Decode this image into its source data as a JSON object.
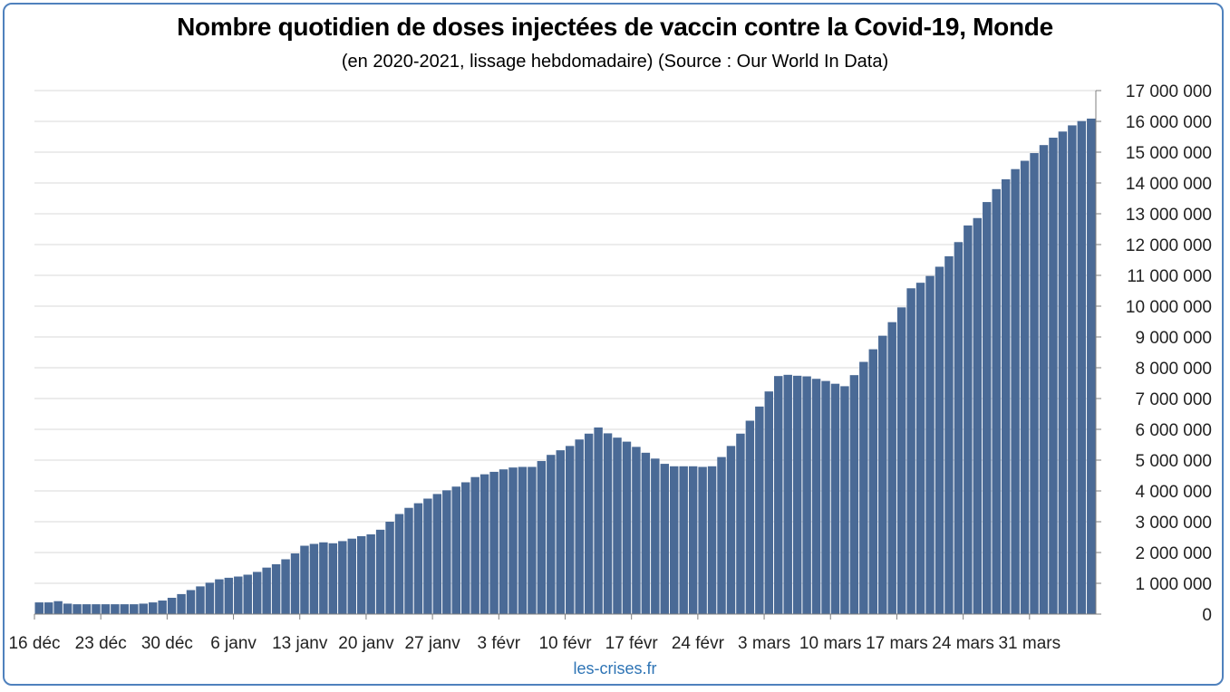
{
  "title": "Nombre quotidien de doses injectées de vaccin contre la Covid-19, Monde",
  "subtitle": "(en 2020-2021, lissage hebdomadaire) (Source : Our World In Data)",
  "footer": "les-crises.fr",
  "colors": {
    "bar": "#4a6a96",
    "frame": "#4f81bd",
    "grid": "#d9d9d9",
    "footer": "#2e74b5"
  },
  "chart_data": {
    "type": "bar",
    "title": "Nombre quotidien de doses injectées de vaccin contre la Covid-19, Monde",
    "subtitle": "(en 2020-2021, lissage hebdomadaire) (Source : Our World In Data)",
    "xlabel": "",
    "ylabel": "",
    "ylim": [
      0,
      17000000
    ],
    "y_axis_side": "right",
    "grid": true,
    "legend": "none",
    "yticks": [
      {
        "value": 0,
        "label": "0"
      },
      {
        "value": 1000000,
        "label": "1 000 000"
      },
      {
        "value": 2000000,
        "label": "2 000 000"
      },
      {
        "value": 3000000,
        "label": "3 000 000"
      },
      {
        "value": 4000000,
        "label": "4 000 000"
      },
      {
        "value": 5000000,
        "label": "5 000 000"
      },
      {
        "value": 6000000,
        "label": "6 000 000"
      },
      {
        "value": 7000000,
        "label": "7 000 000"
      },
      {
        "value": 8000000,
        "label": "8 000 000"
      },
      {
        "value": 9000000,
        "label": "9 000 000"
      },
      {
        "value": 10000000,
        "label": "10 000 000"
      },
      {
        "value": 11000000,
        "label": "11 000 000"
      },
      {
        "value": 12000000,
        "label": "12 000 000"
      },
      {
        "value": 13000000,
        "label": "13 000 000"
      },
      {
        "value": 14000000,
        "label": "14 000 000"
      },
      {
        "value": 15000000,
        "label": "15 000 000"
      },
      {
        "value": 16000000,
        "label": "16 000 000"
      },
      {
        "value": 17000000,
        "label": "17 000 000"
      }
    ],
    "xticks": [
      {
        "index": 0,
        "label": "16 déc"
      },
      {
        "index": 7,
        "label": "23 déc"
      },
      {
        "index": 14,
        "label": "30 déc"
      },
      {
        "index": 21,
        "label": "6 janv"
      },
      {
        "index": 28,
        "label": "13 janv"
      },
      {
        "index": 35,
        "label": "20 janv"
      },
      {
        "index": 42,
        "label": "27 janv"
      },
      {
        "index": 49,
        "label": "3 févr"
      },
      {
        "index": 56,
        "label": "10 févr"
      },
      {
        "index": 63,
        "label": "17 févr"
      },
      {
        "index": 70,
        "label": "24 févr"
      },
      {
        "index": 77,
        "label": "3 mars"
      },
      {
        "index": 84,
        "label": "10 mars"
      },
      {
        "index": 91,
        "label": "17 mars"
      },
      {
        "index": 98,
        "label": "24 mars"
      },
      {
        "index": 105,
        "label": "31 mars"
      }
    ],
    "values": [
      380000,
      380000,
      420000,
      340000,
      320000,
      320000,
      320000,
      320000,
      320000,
      320000,
      320000,
      340000,
      380000,
      440000,
      530000,
      650000,
      780000,
      900000,
      1020000,
      1130000,
      1180000,
      1220000,
      1280000,
      1370000,
      1510000,
      1620000,
      1780000,
      1970000,
      2220000,
      2280000,
      2330000,
      2300000,
      2370000,
      2450000,
      2530000,
      2590000,
      2740000,
      3000000,
      3250000,
      3450000,
      3600000,
      3750000,
      3900000,
      4020000,
      4140000,
      4280000,
      4450000,
      4540000,
      4620000,
      4700000,
      4760000,
      4780000,
      4780000,
      4970000,
      5170000,
      5320000,
      5460000,
      5670000,
      5860000,
      6060000,
      5870000,
      5730000,
      5600000,
      5430000,
      5240000,
      5050000,
      4880000,
      4800000,
      4800000,
      4800000,
      4780000,
      4800000,
      5100000,
      5460000,
      5860000,
      6280000,
      6740000,
      7230000,
      7730000,
      7770000,
      7740000,
      7720000,
      7640000,
      7570000,
      7480000,
      7400000,
      7760000,
      8190000,
      8600000,
      9040000,
      9480000,
      9960000,
      10580000,
      10760000,
      10980000,
      11280000,
      11620000,
      12080000,
      12620000,
      12860000,
      13380000,
      13800000,
      14120000,
      14450000,
      14720000,
      14970000,
      15230000,
      15470000,
      15670000,
      15870000,
      16010000,
      16090000
    ]
  }
}
